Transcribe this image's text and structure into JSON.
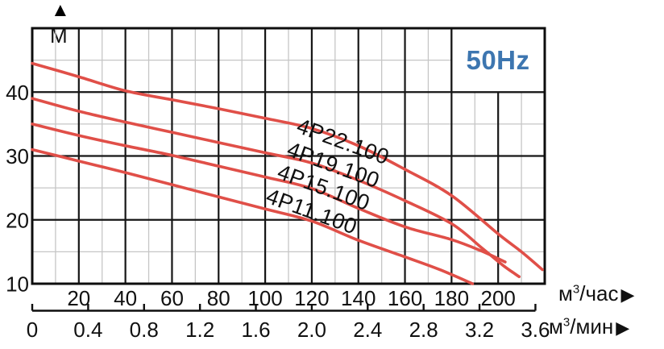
{
  "header": {
    "frequency_label": "50Hz"
  },
  "y_axis_header": {
    "arrow": "▲",
    "unit": "М"
  },
  "axis_units": {
    "hour": {
      "base": "м",
      "sup": "3",
      "rest": "/час",
      "arrow": "▶"
    },
    "min": {
      "base": "м",
      "sup": "3",
      "rest": "/мин",
      "arrow": "▶"
    }
  },
  "chart_data": {
    "type": "line",
    "title": "50Hz",
    "xlabel": "м3/час (top scale), м3/мин (bottom scale)",
    "ylabel": "М",
    "legend_position": "labels-on-curves",
    "grid": {
      "major_x": 20,
      "minor_x": 10,
      "major_y": 10,
      "minor_y": 5
    },
    "x_axis": {
      "hour": {
        "label": "м3/час",
        "range": [
          0,
          220
        ],
        "ticks": [
          20,
          40,
          60,
          80,
          100,
          120,
          140,
          160,
          180,
          200
        ]
      },
      "min": {
        "label": "м3/мин",
        "ticks": [
          "0",
          "0.4",
          "0.8",
          "1.2",
          "1.6",
          "2.0",
          "2.4",
          "2.8",
          "3.2",
          "3.6"
        ]
      }
    },
    "y_axis": {
      "label": "М",
      "range": [
        10,
        50
      ],
      "ticks": [
        40,
        30,
        20,
        10
      ]
    },
    "series": [
      {
        "name": "4P22.100",
        "points": [
          [
            0,
            44.5
          ],
          [
            20,
            42.4
          ],
          [
            40,
            40.2
          ],
          [
            60,
            38.8
          ],
          [
            80,
            37.4
          ],
          [
            100,
            35.9
          ],
          [
            120,
            34.3
          ],
          [
            140,
            31.6
          ],
          [
            160,
            27.9
          ],
          [
            180,
            23.8
          ],
          [
            200,
            17.8
          ],
          [
            210,
            15.0
          ],
          [
            219,
            12.2
          ]
        ]
      },
      {
        "name": "4P19.100",
        "points": [
          [
            0,
            39.0
          ],
          [
            20,
            37.0
          ],
          [
            40,
            35.3
          ],
          [
            60,
            33.7
          ],
          [
            80,
            32.1
          ],
          [
            100,
            30.5
          ],
          [
            120,
            28.9
          ],
          [
            140,
            26.2
          ],
          [
            160,
            23.0
          ],
          [
            180,
            19.4
          ],
          [
            193,
            15.6
          ],
          [
            202,
            12.9
          ],
          [
            209,
            11.1
          ]
        ]
      },
      {
        "name": "4P15.100",
        "points": [
          [
            0,
            35.0
          ],
          [
            20,
            33.2
          ],
          [
            40,
            31.6
          ],
          [
            60,
            30.1
          ],
          [
            80,
            28.4
          ],
          [
            100,
            26.7
          ],
          [
            120,
            24.9
          ],
          [
            140,
            21.8
          ],
          [
            160,
            18.9
          ],
          [
            180,
            16.9
          ],
          [
            193,
            15.1
          ],
          [
            203,
            13.4
          ]
        ]
      },
      {
        "name": "4P11.100",
        "points": [
          [
            0,
            31.0
          ],
          [
            20,
            29.2
          ],
          [
            40,
            27.4
          ],
          [
            60,
            25.5
          ],
          [
            80,
            23.6
          ],
          [
            100,
            21.7
          ],
          [
            120,
            19.8
          ],
          [
            140,
            16.8
          ],
          [
            160,
            14.2
          ],
          [
            175,
            12.2
          ],
          [
            189,
            10.0
          ]
        ]
      }
    ],
    "colors": {
      "curve": "#e04f48",
      "frequency": "#3d76b0",
      "grid_major": "#161616",
      "grid_minor": "#c6c6c6"
    },
    "frequency_box": {
      "x_from": 180,
      "x_to": 220,
      "y_from": 40,
      "y_to": 50
    }
  }
}
